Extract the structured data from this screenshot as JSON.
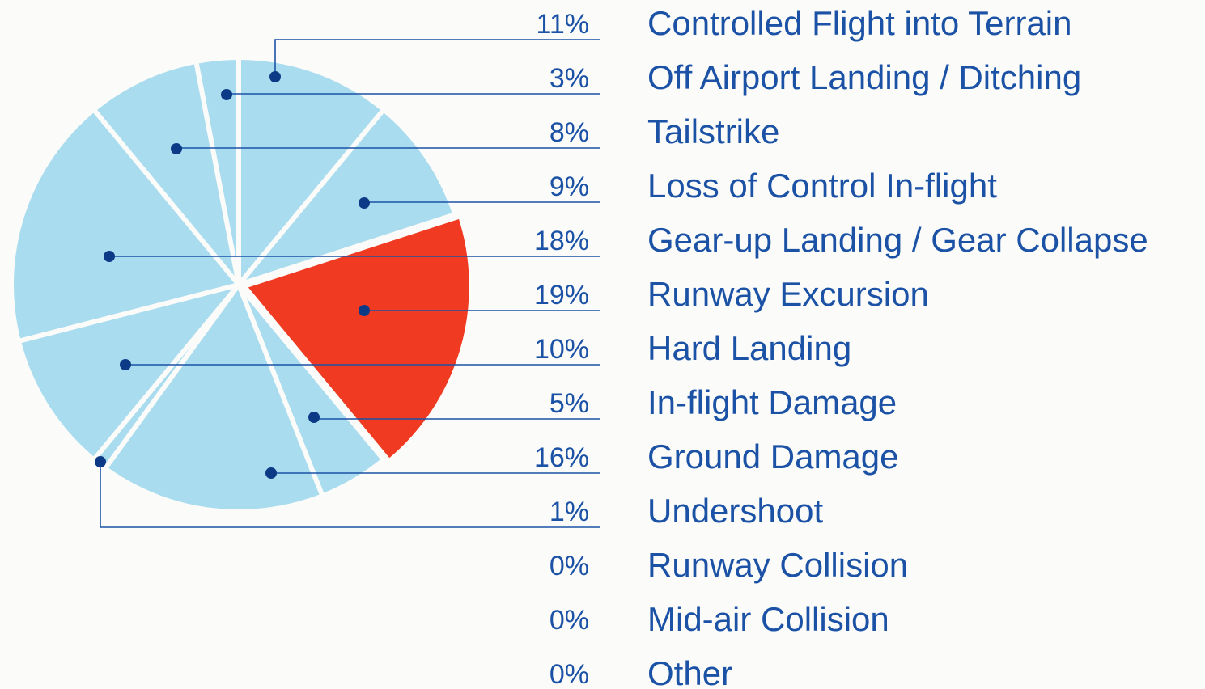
{
  "chart_data": {
    "type": "pie",
    "categories": [
      "Controlled Flight into Terrain",
      "Off Airport Landing / Ditching",
      "Tailstrike",
      "Loss of Control In-flight",
      "Gear-up Landing / Gear Collapse",
      "Runway Excursion",
      "Hard Landing",
      "In-flight Damage",
      "Ground Damage",
      "Undershoot",
      "Runway Collision",
      "Mid-air Collision",
      "Other"
    ],
    "values": [
      11,
      3,
      8,
      9,
      18,
      19,
      10,
      5,
      16,
      1,
      0,
      0,
      0
    ],
    "value_labels": [
      "11%",
      "3%",
      "8%",
      "9%",
      "18%",
      "19%",
      "10%",
      "5%",
      "16%",
      "1%",
      "0%",
      "0%",
      "0%"
    ],
    "colors": [
      "#a9dcee",
      "#a9dcee",
      "#a9dcee",
      "#a9dcee",
      "#a9dcee",
      "#f03a22",
      "#a9dcee",
      "#a9dcee",
      "#a9dcee",
      "#a9dcee",
      "#a9dcee",
      "#a9dcee",
      "#a9dcee"
    ]
  }
}
